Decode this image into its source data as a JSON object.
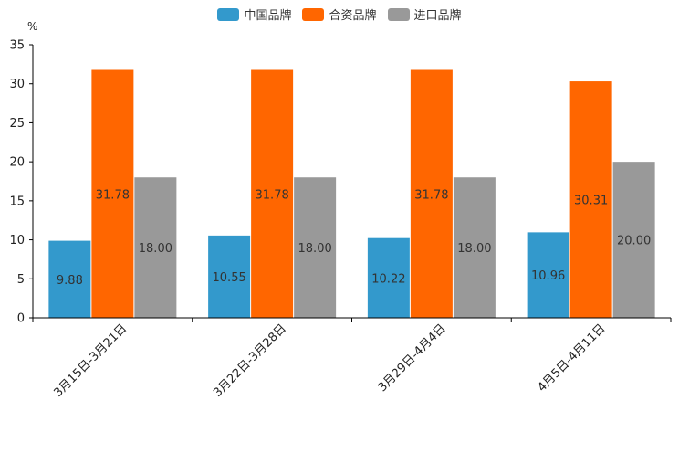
{
  "chart_data": {
    "type": "bar",
    "title": "",
    "xlabel": "",
    "ylabel": "%",
    "ylim": [
      0,
      35
    ],
    "yticks": [
      0,
      5,
      10,
      15,
      20,
      25,
      30,
      35
    ],
    "categories": [
      "3月15日-3月21日",
      "3月22日-3月28日",
      "3月29日-4月4日",
      "4月5日-4月11日"
    ],
    "series": [
      {
        "name": "中国品牌",
        "color": "#3399cc",
        "values": [
          9.88,
          10.55,
          10.22,
          10.96
        ]
      },
      {
        "name": "合资品牌",
        "color": "#ff6600",
        "values": [
          31.78,
          31.78,
          31.78,
          30.31
        ]
      },
      {
        "name": "进口品牌",
        "color": "#999999",
        "values": [
          18.0,
          18.0,
          18.0,
          20.0
        ]
      }
    ],
    "data_labels": [
      [
        "9.88",
        "10.55",
        "10.22",
        "10.96"
      ],
      [
        "31.78",
        "31.78",
        "31.78",
        "30.31"
      ],
      [
        "18.00",
        "18.00",
        "18.00",
        "20.00"
      ]
    ],
    "legend_position": "top-center"
  }
}
